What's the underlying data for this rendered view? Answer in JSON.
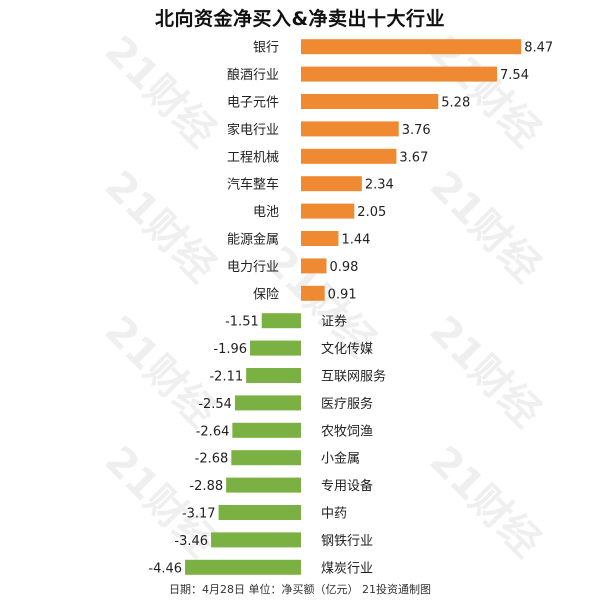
{
  "chart_data": {
    "type": "bar",
    "orientation": "horizontal",
    "title": "北向资金净买入&净卖出十大行业",
    "footer": "日期：4月28日 单位：净买额（亿元） 21投资通制图",
    "watermark": "21财经",
    "colors": {
      "positive": "#F08A32",
      "negative": "#7BB043"
    },
    "categories": [
      "银行",
      "酿酒行业",
      "电子元件",
      "家电行业",
      "工程机械",
      "汽车整车",
      "电池",
      "能源金属",
      "电力行业",
      "保险",
      "证券",
      "文化传媒",
      "互联网服务",
      "医疗服务",
      "农牧饲渔",
      "小金属",
      "专用设备",
      "中药",
      "钢铁行业",
      "煤炭行业"
    ],
    "values": [
      8.47,
      7.54,
      5.28,
      3.76,
      3.67,
      2.34,
      2.05,
      1.44,
      0.98,
      0.91,
      -1.51,
      -1.96,
      -2.11,
      -2.54,
      -2.64,
      -2.68,
      -2.88,
      -3.17,
      -3.46,
      -4.46
    ],
    "labels": [
      "8.47",
      "7.54",
      "5.28",
      "3.76",
      "3.67",
      "2.34",
      "2.05",
      "1.44",
      "0.98",
      "0.91",
      "-1.51",
      "-1.96",
      "-2.11",
      "-2.54",
      "-2.64",
      "-2.68",
      "-2.88",
      "-3.17",
      "-3.46",
      "-4.46"
    ],
    "grid": false,
    "legend": "none"
  }
}
